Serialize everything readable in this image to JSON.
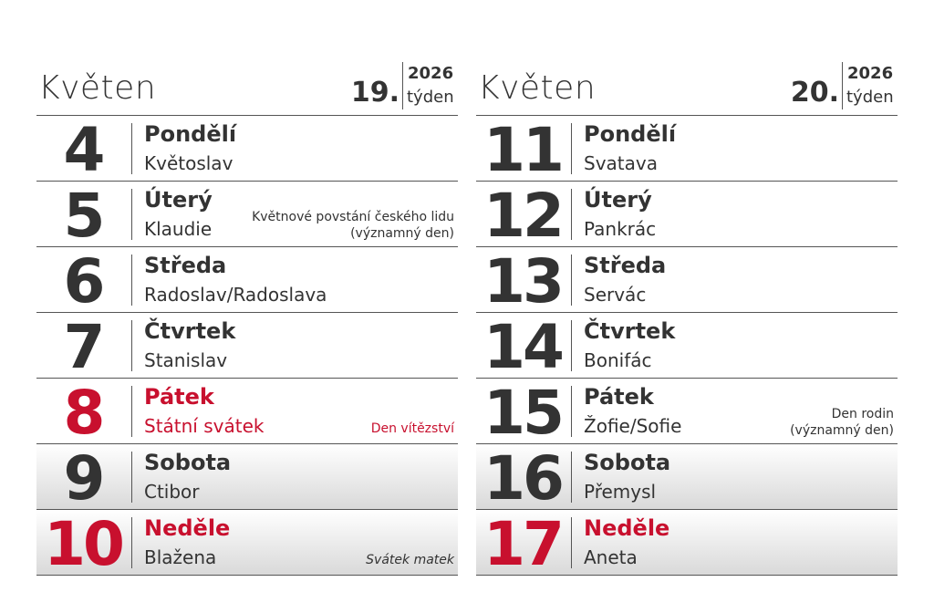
{
  "weeks": [
    {
      "month": "Květen",
      "week": "19.",
      "year": "2026",
      "week_label": "týden",
      "days": [
        {
          "number": "4",
          "weekday": "Pondělí",
          "name": "Květoslav",
          "note": []
        },
        {
          "number": "5",
          "weekday": "Úterý",
          "name": "Klaudie",
          "note": [
            "Květnové povstání českého lidu",
            "(významný den)"
          ]
        },
        {
          "number": "6",
          "weekday": "Středa",
          "name": "Radoslav/Radoslava",
          "note": []
        },
        {
          "number": "7",
          "weekday": "Čtvrtek",
          "name": "Stanislav",
          "note": []
        },
        {
          "number": "8",
          "weekday": "Pátek",
          "name": "Státní svátek",
          "note": [
            "Den vítězství"
          ],
          "color": "#c8102e"
        },
        {
          "number": "9",
          "weekday": "Sobota",
          "name": "Ctibor",
          "note": []
        },
        {
          "number": "10",
          "weekday": "Neděle",
          "name": "Blažena",
          "note": [
            "Svátek matek"
          ],
          "color": "#c8102e",
          "name_color": "#333333"
        }
      ]
    },
    {
      "month": "Květen",
      "week": "20.",
      "year": "2026",
      "week_label": "týden",
      "days": [
        {
          "number": "11",
          "weekday": "Pondělí",
          "name": "Svatava",
          "note": []
        },
        {
          "number": "12",
          "weekday": "Úterý",
          "name": "Pankrác",
          "note": []
        },
        {
          "number": "13",
          "weekday": "Středa",
          "name": "Servác",
          "note": []
        },
        {
          "number": "14",
          "weekday": "Čtvrtek",
          "name": "Bonifác",
          "note": []
        },
        {
          "number": "15",
          "weekday": "Pátek",
          "name": "Žofie/Sofie",
          "note": [
            "Den rodin",
            "(významný den)"
          ]
        },
        {
          "number": "16",
          "weekday": "Sobota",
          "name": "Přemysl",
          "note": []
        },
        {
          "number": "17",
          "weekday": "Neděle",
          "name": "Aneta",
          "note": [],
          "color": "#c8102e",
          "name_color": "#333333"
        }
      ]
    }
  ]
}
